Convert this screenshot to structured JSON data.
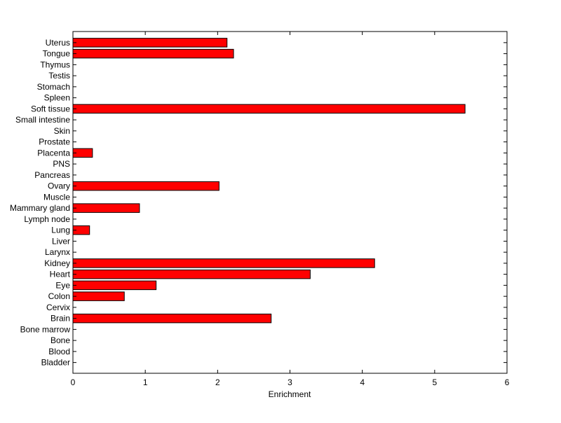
{
  "chart_data": {
    "type": "bar",
    "orientation": "horizontal",
    "title": "",
    "xlabel": "Enrichment",
    "ylabel": "",
    "xlim": [
      0,
      6
    ],
    "xticks": [
      0,
      1,
      2,
      3,
      4,
      5,
      6
    ],
    "grid": false,
    "legend": "none",
    "bar_color": "#ff0000",
    "bar_edge_color": "#000000",
    "categories": [
      "Bladder",
      "Blood",
      "Bone",
      "Bone marrow",
      "Brain",
      "Cervix",
      "Colon",
      "Eye",
      "Heart",
      "Kidney",
      "Larynx",
      "Liver",
      "Lung",
      "Lymph node",
      "Mammary gland",
      "Muscle",
      "Ovary",
      "Pancreas",
      "PNS",
      "Placenta",
      "Prostate",
      "Skin",
      "Small intestine",
      "Soft tissue",
      "Spleen",
      "Stomach",
      "Testis",
      "Thymus",
      "Tongue",
      "Uterus"
    ],
    "values": [
      0,
      0,
      0,
      0,
      2.74,
      0,
      0.71,
      1.15,
      3.28,
      4.17,
      0,
      0,
      0.23,
      0,
      0.92,
      0,
      2.02,
      0,
      0,
      0.27,
      0,
      0,
      0,
      5.42,
      0,
      0,
      0,
      0,
      2.22,
      2.13
    ]
  }
}
